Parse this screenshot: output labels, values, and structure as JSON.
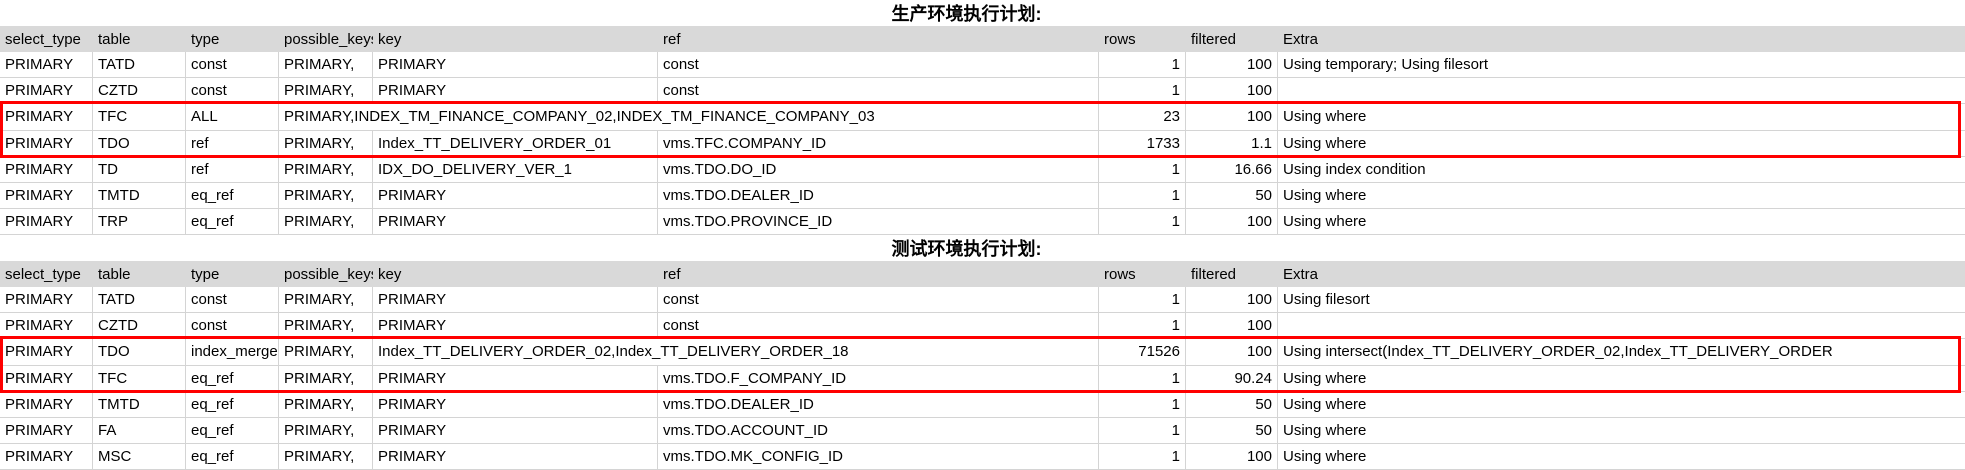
{
  "colors": {
    "header_bg": "#d9d9d9",
    "gridline": "#d4d4d4",
    "highlight_border": "#ff0000",
    "text": "#000000"
  },
  "h": {
    "c1": "select_type",
    "c2": "table",
    "c3": "type",
    "c4": "possible_keys",
    "c5": "key",
    "c6": "ref",
    "c7": "rows",
    "c8": "filtered",
    "c9": "Extra"
  },
  "t1": {
    "title": "生产环境执行计划:",
    "r1": {
      "c1": "PRIMARY",
      "c2": "TATD",
      "c3": "const",
      "c4": "PRIMARY,",
      "c5": "PRIMARY",
      "c6": "const",
      "c7": "1",
      "c8": "100",
      "c9": "Using temporary; Using filesort"
    },
    "r2": {
      "c1": "PRIMARY",
      "c2": "CZTD",
      "c3": "const",
      "c4": "PRIMARY,",
      "c5": "PRIMARY",
      "c6": "const",
      "c7": "1",
      "c8": "100",
      "c9": ""
    },
    "r3": {
      "c1": "PRIMARY",
      "c2": "TFC",
      "c3": "ALL",
      "c4": "PRIMARY,INDEX_TM_FINANCE_COMPANY_02,INDEX_TM_FINANCE_COMPANY_03",
      "c7": "23",
      "c8": "100",
      "c9": "Using where"
    },
    "r4": {
      "c1": "PRIMARY",
      "c2": "TDO",
      "c3": "ref",
      "c4": "PRIMARY,",
      "c5": "Index_TT_DELIVERY_ORDER_01",
      "c6": "vms.TFC.COMPANY_ID",
      "c7": "1733",
      "c8": "1.1",
      "c9": "Using where"
    },
    "r5": {
      "c1": "PRIMARY",
      "c2": "TD",
      "c3": "ref",
      "c4": "PRIMARY,",
      "c5": "IDX_DO_DELIVERY_VER_1",
      "c6": "vms.TDO.DO_ID",
      "c7": "1",
      "c8": "16.66",
      "c9": "Using index condition"
    },
    "r6": {
      "c1": "PRIMARY",
      "c2": "TMTD",
      "c3": "eq_ref",
      "c4": "PRIMARY,",
      "c5": "PRIMARY",
      "c6": "vms.TDO.DEALER_ID",
      "c7": "1",
      "c8": "50",
      "c9": "Using where"
    },
    "r7": {
      "c1": "PRIMARY",
      "c2": "TRP",
      "c3": "eq_ref",
      "c4": "PRIMARY,",
      "c5": "PRIMARY",
      "c6": "vms.TDO.PROVINCE_ID",
      "c7": "1",
      "c8": "100",
      "c9": "Using where"
    }
  },
  "t2": {
    "title": "测试环境执行计划:",
    "r1": {
      "c1": "PRIMARY",
      "c2": "TATD",
      "c3": "const",
      "c4": "PRIMARY,",
      "c5": "PRIMARY",
      "c6": "const",
      "c7": "1",
      "c8": "100",
      "c9": "Using filesort"
    },
    "r2": {
      "c1": "PRIMARY",
      "c2": "CZTD",
      "c3": "const",
      "c4": "PRIMARY,",
      "c5": "PRIMARY",
      "c6": "const",
      "c7": "1",
      "c8": "100",
      "c9": ""
    },
    "r3": {
      "c1": "PRIMARY",
      "c2": "TDO",
      "c3": "index_merge",
      "c4": "PRIMARY,",
      "c5": "Index_TT_DELIVERY_ORDER_02,Index_TT_DELIVERY_ORDER_18",
      "c7": "71526",
      "c8": "100",
      "c9": "Using intersect(Index_TT_DELIVERY_ORDER_02,Index_TT_DELIVERY_ORDER"
    },
    "r4": {
      "c1": "PRIMARY",
      "c2": "TFC",
      "c3": "eq_ref",
      "c4": "PRIMARY,",
      "c5": "PRIMARY",
      "c6": "vms.TDO.F_COMPANY_ID",
      "c7": "1",
      "c8": "90.24",
      "c9": "Using where"
    },
    "r5": {
      "c1": "PRIMARY",
      "c2": "TMTD",
      "c3": "eq_ref",
      "c4": "PRIMARY,",
      "c5": "PRIMARY",
      "c6": "vms.TDO.DEALER_ID",
      "c7": "1",
      "c8": "50",
      "c9": "Using where"
    },
    "r6": {
      "c1": "PRIMARY",
      "c2": "FA",
      "c3": "eq_ref",
      "c4": "PRIMARY,",
      "c5": "PRIMARY",
      "c6": "vms.TDO.ACCOUNT_ID",
      "c7": "1",
      "c8": "50",
      "c9": "Using where"
    },
    "r7": {
      "c1": "PRIMARY",
      "c2": "MSC",
      "c3": "eq_ref",
      "c4": "PRIMARY,",
      "c5": "PRIMARY",
      "c6": "vms.TDO.MK_CONFIG_ID",
      "c7": "1",
      "c8": "100",
      "c9": "Using where"
    }
  }
}
